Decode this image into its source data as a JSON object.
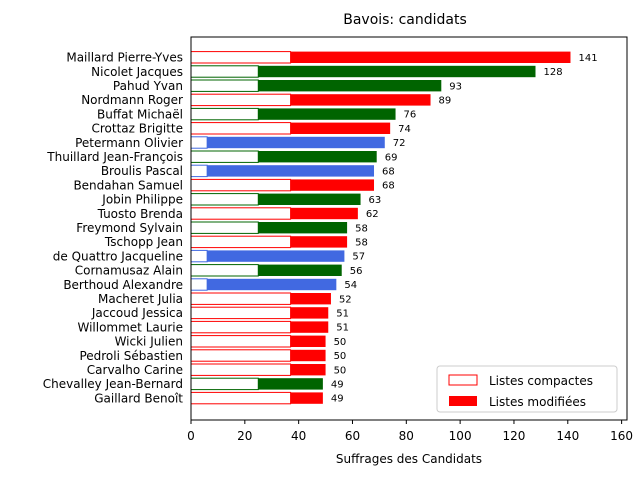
{
  "chart_data": {
    "type": "bar",
    "orientation": "horizontal",
    "stacked": true,
    "title": "Bavois: candidats",
    "xlabel": "Suffrages des Candidats",
    "ylabel": "",
    "xlim": [
      0,
      162
    ],
    "xticks": [
      "0",
      "20",
      "40",
      "60",
      "80",
      "100",
      "120",
      "140",
      "160"
    ],
    "grid": false,
    "legend_position": "bottom-right",
    "legend": [
      {
        "label": "Listes compactes",
        "style": "outline"
      },
      {
        "label": "Listes modifiées",
        "style": "filled"
      }
    ],
    "colors": {
      "red": "#ff0000",
      "green": "#006400",
      "blue": "#4169e1"
    },
    "candidates": [
      {
        "name": "Maillard Pierre-Yves",
        "total": 141,
        "compact": 37,
        "color": "red"
      },
      {
        "name": "Nicolet Jacques",
        "total": 128,
        "compact": 25,
        "color": "green"
      },
      {
        "name": "Pahud Yvan",
        "total": 93,
        "compact": 25,
        "color": "green"
      },
      {
        "name": "Nordmann Roger",
        "total": 89,
        "compact": 37,
        "color": "red"
      },
      {
        "name": "Buffat Michaël",
        "total": 76,
        "compact": 25,
        "color": "green"
      },
      {
        "name": "Crottaz Brigitte",
        "total": 74,
        "compact": 37,
        "color": "red"
      },
      {
        "name": "Petermann Olivier",
        "total": 72,
        "compact": 6,
        "color": "blue"
      },
      {
        "name": "Thuillard Jean-François",
        "total": 69,
        "compact": 25,
        "color": "green"
      },
      {
        "name": "Broulis Pascal",
        "total": 68,
        "compact": 6,
        "color": "blue"
      },
      {
        "name": "Bendahan Samuel",
        "total": 68,
        "compact": 37,
        "color": "red"
      },
      {
        "name": "Jobin Philippe",
        "total": 63,
        "compact": 25,
        "color": "green"
      },
      {
        "name": "Tuosto Brenda",
        "total": 62,
        "compact": 37,
        "color": "red"
      },
      {
        "name": "Freymond Sylvain",
        "total": 58,
        "compact": 25,
        "color": "green"
      },
      {
        "name": "Tschopp Jean",
        "total": 58,
        "compact": 37,
        "color": "red"
      },
      {
        "name": "de Quattro Jacqueline",
        "total": 57,
        "compact": 6,
        "color": "blue"
      },
      {
        "name": "Cornamusaz Alain",
        "total": 56,
        "compact": 25,
        "color": "green"
      },
      {
        "name": "Berthoud Alexandre",
        "total": 54,
        "compact": 6,
        "color": "blue"
      },
      {
        "name": "Macheret Julia",
        "total": 52,
        "compact": 37,
        "color": "red"
      },
      {
        "name": "Jaccoud Jessica",
        "total": 51,
        "compact": 37,
        "color": "red"
      },
      {
        "name": "Willommet Laurie",
        "total": 51,
        "compact": 37,
        "color": "red"
      },
      {
        "name": "Wicki Julien",
        "total": 50,
        "compact": 37,
        "color": "red"
      },
      {
        "name": "Pedroli Sébastien",
        "total": 50,
        "compact": 37,
        "color": "red"
      },
      {
        "name": "Carvalho Carine",
        "total": 50,
        "compact": 37,
        "color": "red"
      },
      {
        "name": "Chevalley Jean-Bernard",
        "total": 49,
        "compact": 25,
        "color": "green"
      },
      {
        "name": "Gaillard Benoît",
        "total": 49,
        "compact": 37,
        "color": "red"
      }
    ]
  }
}
